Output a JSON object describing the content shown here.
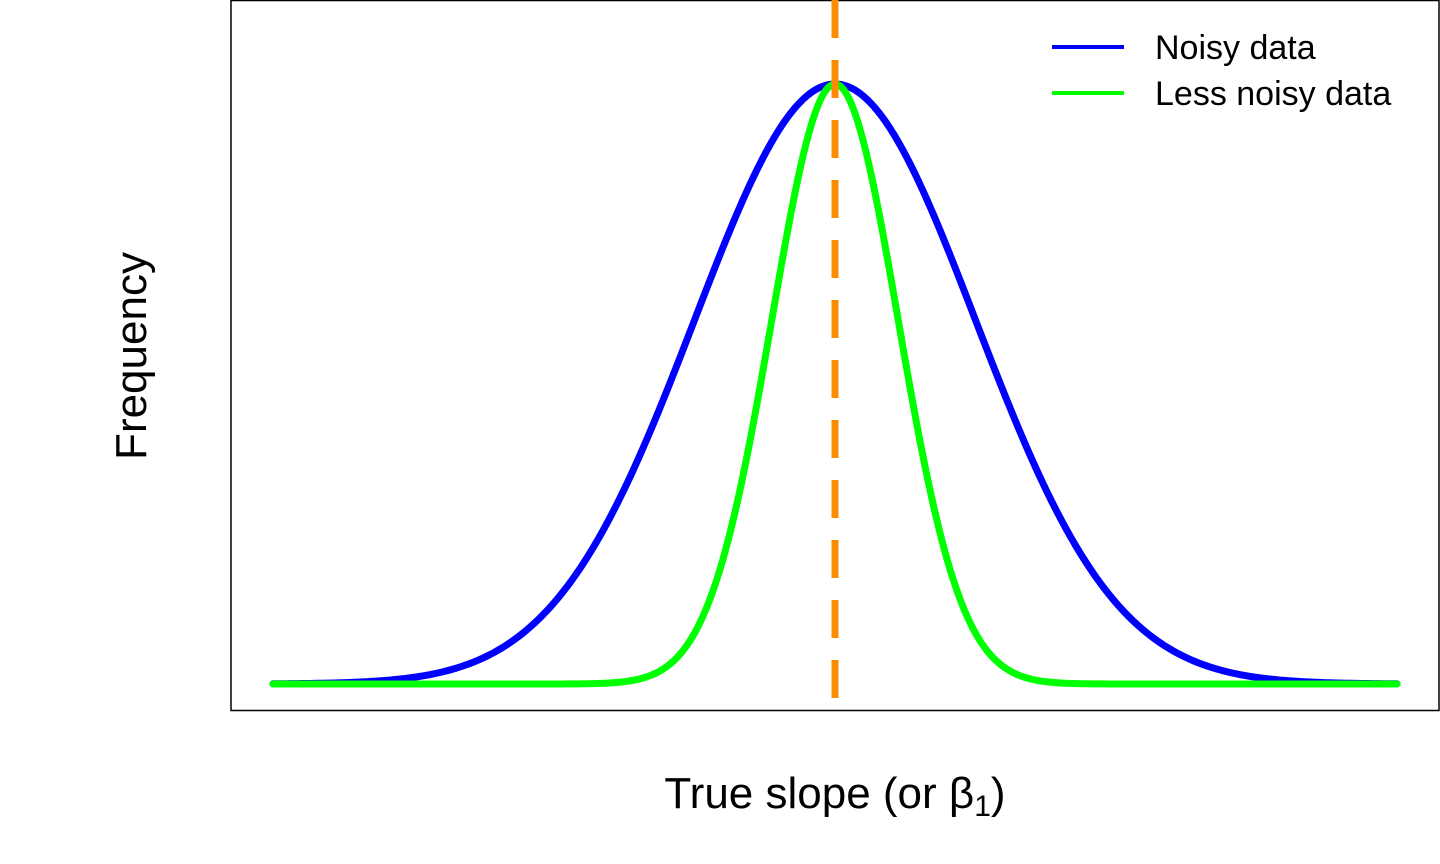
{
  "chart_data": {
    "type": "line",
    "title": "",
    "xlabel": "True slope (or β₁)",
    "ylabel": "Frequency",
    "xlabel_parts": {
      "prefix": "True slope (or ",
      "symbol": "β",
      "subscript": "1",
      "suffix": ")"
    },
    "xlim": [
      -4,
      4
    ],
    "ylim": [
      0,
      1.04
    ],
    "grid": false,
    "legend_position": "top-right",
    "x_ticks_shown": false,
    "y_ticks_shown": false,
    "series": [
      {
        "name": "Noisy data",
        "color": "#0000ff",
        "distribution": "normal",
        "mean": 0,
        "sd": 1,
        "peak": 1
      },
      {
        "name": "Less noisy data",
        "color": "#00ff00",
        "distribution": "normal",
        "mean": 0,
        "sd": 0.45,
        "peak": 1
      }
    ],
    "reference_line": {
      "x": 0,
      "style": "dashed",
      "color": "#ff8c00"
    }
  }
}
